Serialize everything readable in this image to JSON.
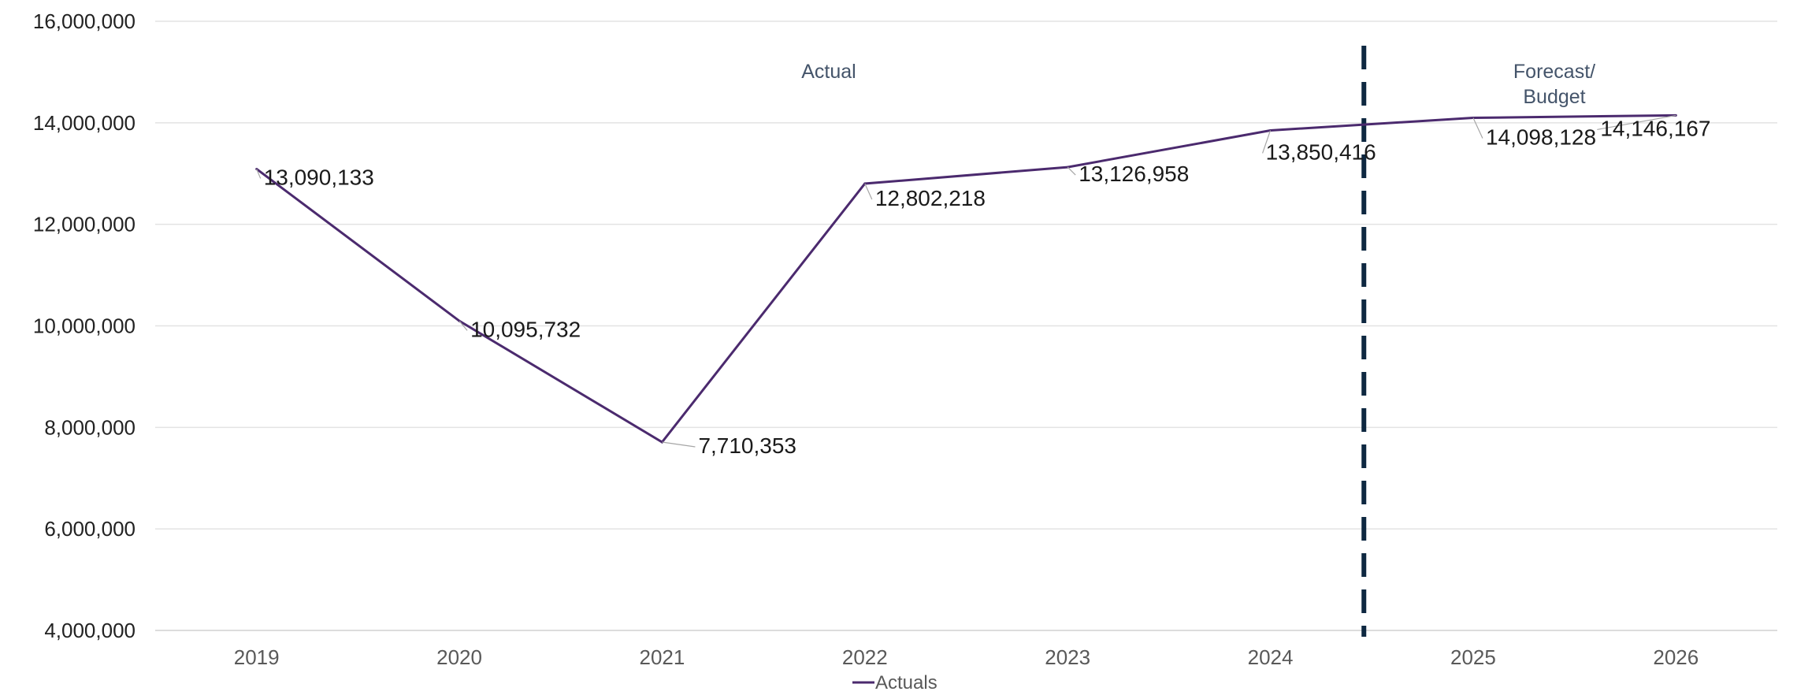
{
  "chart_data": {
    "type": "line",
    "title": "",
    "xlabel": "",
    "ylabel": "",
    "categories": [
      "2019",
      "2020",
      "2021",
      "2022",
      "2023",
      "2024",
      "2025",
      "2026"
    ],
    "series": [
      {
        "name": "Actuals",
        "color": "#4b2a6e",
        "values": [
          13090133,
          10095732,
          7710353,
          12802218,
          13126958,
          13850416,
          14098128,
          14146167
        ],
        "data_labels": [
          "13,090,133",
          "10,095,732",
          "7,710,353",
          "12,802,218",
          "13,126,958",
          "13,850,416",
          "14,098,128",
          "14,146,167"
        ]
      }
    ],
    "ylim": [
      4000000,
      16000000
    ],
    "y_ticks": [
      4000000,
      6000000,
      8000000,
      10000000,
      12000000,
      14000000,
      16000000
    ],
    "y_tick_labels": [
      "4,000,000",
      "6,000,000",
      "8,000,000",
      "10,000,000",
      "12,000,000",
      "14,000,000",
      "16,000,000"
    ],
    "grid": true,
    "legend_position": "bottom",
    "annotations": [
      {
        "text": "Actual"
      },
      {
        "text": "Forecast/\nBudget"
      }
    ],
    "divider": {
      "style": "dashed",
      "color": "#0e2841",
      "between": [
        "2024",
        "2025"
      ]
    }
  }
}
